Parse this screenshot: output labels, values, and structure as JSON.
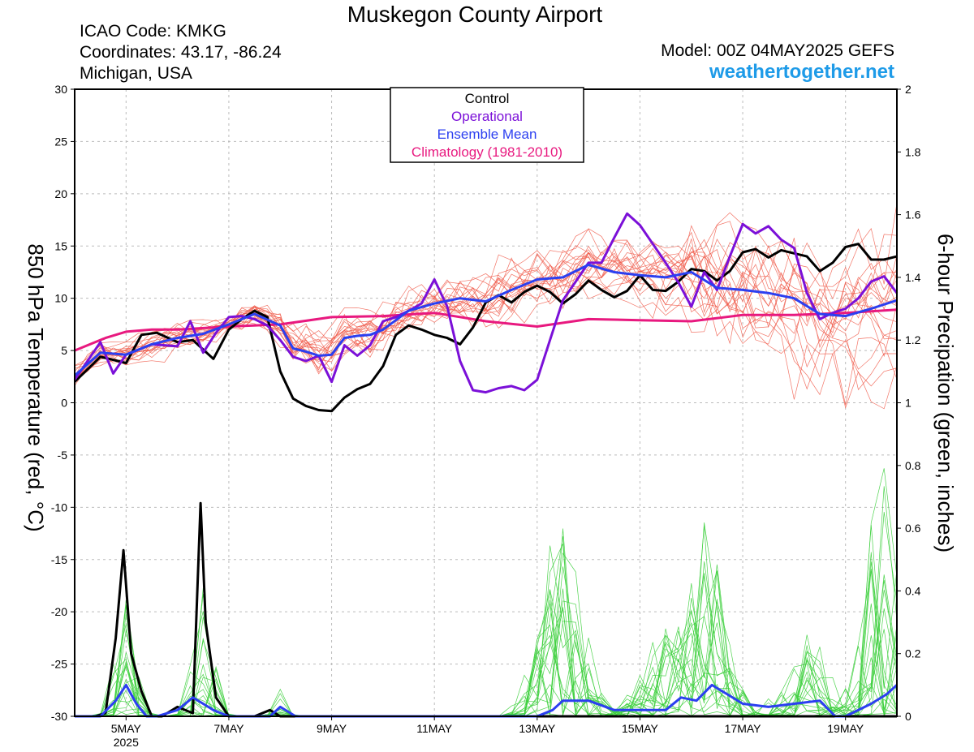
{
  "header": {
    "title": "Muskegon County Airport",
    "icao": "ICAO Code: KMKG",
    "coords": "Coordinates: 43.17, -86.24",
    "state": "Michigan, USA",
    "model": "Model: 00Z 04MAY2025 GEFS",
    "site": "weathertogether.net"
  },
  "colors": {
    "members_temp": "#f05a4a",
    "members_precip": "#3ccf3c",
    "control": "#000000",
    "operational": "#7b10d8",
    "mean": "#2b3ff0",
    "climatology": "#e8197f",
    "site": "#1e9be8"
  },
  "chart_data": {
    "type": "line",
    "ylabel": "850 hPa Temperature (red, °C)",
    "y2label": "6-hour Precipation (green, inches)",
    "ylim": [
      -30,
      30
    ],
    "y2lim": [
      0,
      2
    ],
    "yticks": [
      30,
      25,
      20,
      15,
      10,
      5,
      0,
      -5,
      -10,
      -15,
      -20,
      -25,
      -30
    ],
    "y2ticks": [
      "2",
      "1.8",
      "1.6",
      "1.4",
      "1.2",
      "1",
      "0.8",
      "0.6",
      "0.4",
      "0.2",
      "0"
    ],
    "xlim_days": [
      4.0,
      20.0
    ],
    "x_ticks": [
      {
        "day": 5,
        "label": "5MAY",
        "sub": "2025"
      },
      {
        "day": 7,
        "label": "7MAY",
        "sub": ""
      },
      {
        "day": 9,
        "label": "9MAY",
        "sub": ""
      },
      {
        "day": 11,
        "label": "11MAY",
        "sub": ""
      },
      {
        "day": 13,
        "label": "13MAY",
        "sub": ""
      },
      {
        "day": 15,
        "label": "15MAY",
        "sub": ""
      },
      {
        "day": 17,
        "label": "17MAY",
        "sub": ""
      },
      {
        "day": 19,
        "label": "19MAY",
        "sub": ""
      }
    ],
    "legend": {
      "placement": "top-center",
      "items": [
        {
          "label": "Control",
          "color": "#000000"
        },
        {
          "label": "Operational",
          "color": "#7b10d8"
        },
        {
          "label": "Ensemble Mean",
          "color": "#2b3ff0"
        },
        {
          "label": "Climatology (1981-2010)",
          "color": "#e8197f"
        }
      ]
    },
    "series": [
      {
        "name": "Climatology (1981-2010)",
        "axis": "temp",
        "color": "#e8197f",
        "x": [
          4.0,
          4.6,
          5.0,
          5.5,
          6.0,
          7.0,
          8.0,
          9.0,
          10.0,
          11.0,
          12.0,
          13.0,
          14.0,
          15.0,
          16.0,
          17.0,
          18.0,
          19.0,
          20.0
        ],
        "y": [
          5.0,
          6.2,
          6.8,
          7.0,
          7.0,
          7.3,
          7.5,
          8.2,
          8.3,
          8.6,
          7.8,
          7.3,
          8.0,
          7.9,
          7.8,
          8.4,
          8.4,
          8.6,
          8.9
        ]
      },
      {
        "name": "Control",
        "axis": "temp",
        "color": "#000000",
        "x": [
          4.0,
          4.5,
          5.0,
          5.3,
          5.6,
          6.0,
          6.3,
          6.7,
          7.0,
          7.25,
          7.5,
          7.75,
          8.0,
          8.25,
          8.5,
          8.75,
          9.0,
          9.25,
          9.5,
          9.75,
          10.0,
          10.25,
          10.5,
          10.75,
          11.0,
          11.25,
          11.5,
          11.75,
          12.0,
          12.25,
          12.5,
          12.75,
          13.0,
          13.25,
          13.5,
          13.75,
          14.0,
          14.25,
          14.5,
          14.75,
          15.0,
          15.25,
          15.5,
          15.75,
          16.0,
          16.25,
          16.5,
          16.75,
          17.0,
          17.25,
          17.5,
          17.75,
          18.0,
          18.25,
          18.5,
          18.75,
          19.0,
          19.25,
          19.5,
          19.75,
          20.0
        ],
        "y": [
          2.0,
          4.4,
          3.8,
          6.5,
          6.7,
          5.8,
          6.0,
          4.2,
          7.0,
          8.0,
          8.8,
          8.2,
          3.0,
          0.4,
          -0.3,
          -0.7,
          -0.8,
          0.5,
          1.3,
          1.8,
          3.5,
          6.5,
          7.4,
          7.0,
          6.5,
          6.2,
          5.6,
          7.2,
          9.6,
          10.3,
          9.6,
          10.6,
          11.2,
          10.6,
          9.5,
          10.4,
          11.7,
          10.8,
          10.1,
          10.7,
          12.2,
          10.8,
          10.7,
          11.6,
          12.8,
          12.6,
          11.7,
          12.6,
          14.4,
          14.7,
          13.9,
          14.6,
          14.3,
          14.0,
          12.6,
          13.4,
          14.9,
          15.2,
          13.7,
          13.7,
          14.0
        ]
      },
      {
        "name": "Operational",
        "axis": "temp",
        "color": "#7b10d8",
        "x": [
          4.0,
          4.5,
          4.75,
          5.0,
          5.5,
          6.0,
          6.25,
          6.5,
          6.75,
          7.0,
          7.25,
          7.5,
          7.75,
          8.0,
          8.25,
          8.5,
          8.75,
          9.0,
          9.25,
          9.5,
          9.75,
          10.0,
          10.25,
          10.5,
          10.75,
          11.0,
          11.25,
          11.5,
          11.75,
          12.0,
          12.25,
          12.5,
          12.75,
          13.0,
          13.25,
          13.5,
          13.75,
          14.0,
          14.25,
          14.5,
          14.75,
          15.0,
          15.25,
          15.5,
          15.75,
          16.0,
          16.25,
          16.5,
          16.75,
          17.0,
          17.25,
          17.5,
          17.75,
          18.0,
          18.25,
          18.5,
          18.75,
          19.0,
          19.25,
          19.5,
          19.75,
          20.0
        ],
        "y": [
          2.2,
          5.8,
          2.8,
          4.6,
          5.6,
          5.4,
          7.8,
          4.8,
          6.7,
          8.2,
          8.3,
          8.0,
          7.4,
          6.0,
          4.4,
          4.0,
          4.5,
          2.0,
          5.5,
          4.5,
          5.5,
          7.8,
          8.2,
          8.8,
          9.5,
          11.8,
          9.2,
          4.0,
          1.2,
          1.0,
          1.4,
          1.6,
          1.2,
          2.2,
          6.0,
          9.8,
          11.6,
          13.4,
          13.4,
          15.8,
          18.1,
          17.0,
          15.2,
          13.4,
          11.5,
          9.2,
          12.5,
          10.8,
          14.0,
          17.1,
          16.2,
          16.9,
          15.6,
          14.8,
          10.5,
          8.0,
          8.6,
          9.0,
          10.0,
          11.6,
          12.1,
          10.5
        ]
      },
      {
        "name": "Ensemble Mean",
        "axis": "temp",
        "color": "#2b3ff0",
        "x": [
          4.0,
          4.5,
          5.0,
          5.5,
          6.0,
          6.5,
          7.0,
          7.5,
          8.0,
          8.25,
          8.5,
          8.75,
          9.0,
          9.25,
          9.5,
          9.75,
          10.0,
          10.5,
          11.0,
          11.5,
          12.0,
          12.5,
          13.0,
          13.5,
          14.0,
          14.5,
          15.0,
          15.5,
          16.0,
          16.5,
          17.0,
          17.5,
          18.0,
          18.5,
          19.0,
          19.5,
          20.0
        ],
        "y": [
          2.6,
          4.8,
          4.6,
          5.6,
          6.2,
          6.6,
          7.5,
          8.5,
          7.4,
          5.2,
          4.9,
          4.5,
          4.6,
          6.2,
          6.4,
          6.5,
          7.0,
          8.8,
          9.5,
          10.0,
          9.7,
          10.8,
          11.8,
          12.0,
          13.2,
          12.5,
          12.2,
          12.0,
          12.5,
          11.0,
          10.8,
          10.5,
          10.0,
          8.5,
          8.3,
          9.0,
          9.8
        ]
      },
      {
        "name": "Control",
        "axis": "precip",
        "color": "#000000",
        "x": [
          4.0,
          4.4,
          4.6,
          4.8,
          4.95,
          5.1,
          5.3,
          5.5,
          5.7,
          6.0,
          6.3,
          6.45,
          6.55,
          6.75,
          7.0,
          7.5,
          7.8,
          8.0,
          8.3,
          9.0,
          20.0
        ],
        "y": [
          0,
          0,
          0.01,
          0.25,
          0.53,
          0.2,
          0.08,
          0.0,
          0.0,
          0.03,
          0.01,
          0.68,
          0.3,
          0.06,
          0.0,
          0.0,
          0.02,
          0.0,
          0.0,
          0.0,
          0.0
        ]
      },
      {
        "name": "Ensemble Mean",
        "axis": "precip",
        "color": "#2b3ff0",
        "x": [
          4.0,
          4.5,
          4.8,
          5.0,
          5.2,
          5.4,
          5.6,
          6.0,
          6.3,
          6.5,
          6.7,
          7.0,
          7.5,
          7.8,
          8.0,
          8.3,
          9.0,
          12.0,
          12.5,
          13.0,
          13.3,
          13.5,
          14.0,
          14.5,
          15.0,
          15.5,
          15.8,
          16.1,
          16.4,
          16.7,
          17.0,
          17.5,
          18.0,
          18.5,
          18.8,
          19.0,
          19.5,
          19.8,
          20.0
        ],
        "y": [
          0,
          0,
          0.05,
          0.1,
          0.04,
          0.0,
          0.0,
          0.02,
          0.06,
          0.04,
          0.02,
          0.0,
          0.0,
          0.0,
          0.03,
          0.0,
          0.0,
          0.0,
          0.0,
          0.0,
          0.02,
          0.05,
          0.05,
          0.02,
          0.02,
          0.02,
          0.06,
          0.05,
          0.1,
          0.07,
          0.04,
          0.03,
          0.04,
          0.05,
          0.0,
          0.0,
          0.04,
          0.07,
          0.1
        ]
      }
    ]
  }
}
